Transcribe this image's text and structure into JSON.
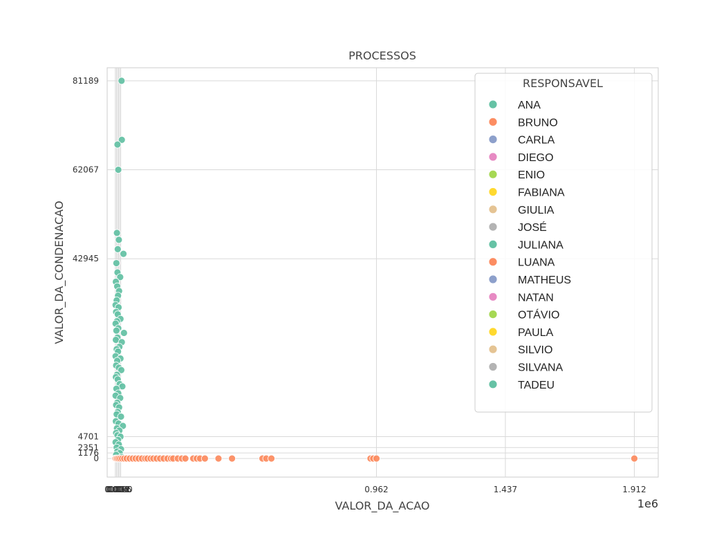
{
  "chart_data": {
    "type": "scatter",
    "title": "PROCESSOS",
    "xlabel": "VALOR_DA_ACAO",
    "ylabel": "VALOR_DA_CONDENACAO",
    "x_offset_label": "1e6",
    "xlim": [
      -30000,
      2000000
    ],
    "ylim": [
      -4000,
      84000
    ],
    "x_ticks": [
      {
        "value": 0,
        "label": "0"
      },
      {
        "value": 4000,
        "label": "0.004"
      },
      {
        "value": 8000,
        "label": "0.008"
      },
      {
        "value": 12000,
        "label": "0.012"
      },
      {
        "value": 16000,
        "label": "0.016"
      },
      {
        "value": 20000,
        "label": "0.020"
      },
      {
        "value": 962000,
        "label": "0.962"
      },
      {
        "value": 1437000,
        "label": "1.437"
      },
      {
        "value": 1912000,
        "label": "1.912"
      }
    ],
    "y_ticks": [
      {
        "value": 0,
        "label": "0"
      },
      {
        "value": 1176,
        "label": "1176"
      },
      {
        "value": 2351,
        "label": "2351"
      },
      {
        "value": 4701,
        "label": "4701"
      },
      {
        "value": 42945,
        "label": "42945"
      },
      {
        "value": 62067,
        "label": "62067"
      },
      {
        "value": 81189,
        "label": "81189"
      }
    ],
    "grid": true,
    "legend_placement": "upper-right",
    "legend_title": "RESPONSAVEL",
    "legend": [
      {
        "name": "ANA",
        "color": "#66c2a5"
      },
      {
        "name": "BRUNO",
        "color": "#fc8d62"
      },
      {
        "name": "CARLA",
        "color": "#8da0cb"
      },
      {
        "name": "DIEGO",
        "color": "#e78ac3"
      },
      {
        "name": "ENIO",
        "color": "#a6d854"
      },
      {
        "name": "FABIANA",
        "color": "#ffd92f"
      },
      {
        "name": "GIULIA",
        "color": "#e5c494"
      },
      {
        "name": "JOSÉ",
        "color": "#b3b3b3"
      },
      {
        "name": "JULIANA",
        "color": "#66c2a5"
      },
      {
        "name": "LUANA",
        "color": "#fc8d62"
      },
      {
        "name": "MATHEUS",
        "color": "#8da0cb"
      },
      {
        "name": "NATAN",
        "color": "#e78ac3"
      },
      {
        "name": "OTÁVIO",
        "color": "#a6d854"
      },
      {
        "name": "PAULA",
        "color": "#ffd92f"
      },
      {
        "name": "SILVIO",
        "color": "#e5c494"
      },
      {
        "name": "SILVANA",
        "color": "#b3b3b3"
      },
      {
        "name": "TADEU",
        "color": "#66c2a5"
      }
    ],
    "series": [
      {
        "color": "#66c2a5",
        "points": [
          [
            23000,
            81189
          ],
          [
            24000,
            68500
          ],
          [
            8000,
            67500
          ],
          [
            11000,
            62067
          ],
          [
            30000,
            44000
          ],
          [
            6000,
            48500
          ],
          [
            13000,
            47000
          ],
          [
            9000,
            45000
          ],
          [
            4000,
            42000
          ],
          [
            8000,
            40000
          ],
          [
            18000,
            39000
          ],
          [
            2000,
            38000
          ],
          [
            7000,
            37000
          ],
          [
            14000,
            36000
          ],
          [
            10000,
            35000
          ],
          [
            5000,
            34000
          ],
          [
            1000,
            33000
          ],
          [
            12000,
            32500
          ],
          [
            3000,
            31500
          ],
          [
            9000,
            31000
          ],
          [
            19000,
            30000
          ],
          [
            6000,
            29500
          ],
          [
            1000,
            29000
          ],
          [
            11000,
            28000
          ],
          [
            4000,
            27500
          ],
          [
            32000,
            27000
          ],
          [
            8000,
            26000
          ],
          [
            2000,
            25500
          ],
          [
            24000,
            25000
          ],
          [
            15000,
            24000
          ],
          [
            5000,
            23500
          ],
          [
            10000,
            23000
          ],
          [
            1000,
            22000
          ],
          [
            19000,
            21500
          ],
          [
            7000,
            21000
          ],
          [
            3000,
            20000
          ],
          [
            13000,
            19500
          ],
          [
            22000,
            19000
          ],
          [
            6000,
            18000
          ],
          [
            2000,
            17500
          ],
          [
            9000,
            17000
          ],
          [
            16000,
            16000
          ],
          [
            26000,
            15500
          ],
          [
            4000,
            15000
          ],
          [
            11000,
            14000
          ],
          [
            1000,
            13500
          ],
          [
            18000,
            13000
          ],
          [
            7000,
            12000
          ],
          [
            3000,
            11500
          ],
          [
            14000,
            11000
          ],
          [
            9000,
            10000
          ],
          [
            5000,
            9500
          ],
          [
            21000,
            9000
          ],
          [
            2000,
            8000
          ],
          [
            12000,
            7500
          ],
          [
            28000,
            7000
          ],
          [
            6000,
            6500
          ],
          [
            15000,
            6000
          ],
          [
            3000,
            5500
          ],
          [
            8000,
            5000
          ],
          [
            19000,
            4701
          ],
          [
            10000,
            4000
          ],
          [
            1000,
            3500
          ],
          [
            13000,
            3000
          ],
          [
            5000,
            2351
          ],
          [
            21000,
            2000
          ],
          [
            7000,
            1500
          ],
          [
            16000,
            1176
          ],
          [
            3000,
            800
          ],
          [
            23000,
            300
          ],
          [
            11000,
            0
          ],
          [
            160000,
            0
          ],
          [
            5000,
            0
          ]
        ]
      },
      {
        "color": "#fc8d62",
        "points": [
          [
            0,
            0
          ],
          [
            3000,
            0
          ],
          [
            7000,
            0
          ],
          [
            12000,
            0
          ],
          [
            18000,
            0
          ],
          [
            25000,
            0
          ],
          [
            33000,
            0
          ],
          [
            42000,
            0
          ],
          [
            53000,
            0
          ],
          [
            64000,
            0
          ],
          [
            75000,
            0
          ],
          [
            86000,
            0
          ],
          [
            98000,
            0
          ],
          [
            110000,
            0
          ],
          [
            118000,
            0
          ],
          [
            130000,
            0
          ],
          [
            140000,
            0
          ],
          [
            152000,
            0
          ],
          [
            165000,
            0
          ],
          [
            178000,
            0
          ],
          [
            192000,
            0
          ],
          [
            205000,
            0
          ],
          [
            213000,
            0
          ],
          [
            230000,
            0
          ],
          [
            245000,
            0
          ],
          [
            258000,
            0
          ],
          [
            287000,
            0
          ],
          [
            300000,
            0
          ],
          [
            312000,
            0
          ],
          [
            330000,
            0
          ],
          [
            380000,
            0
          ],
          [
            430000,
            0
          ],
          [
            542000,
            0
          ],
          [
            556000,
            0
          ],
          [
            575000,
            0
          ],
          [
            940000,
            0
          ],
          [
            950000,
            0
          ],
          [
            962000,
            0
          ],
          [
            1912000,
            0
          ]
        ]
      }
    ]
  }
}
